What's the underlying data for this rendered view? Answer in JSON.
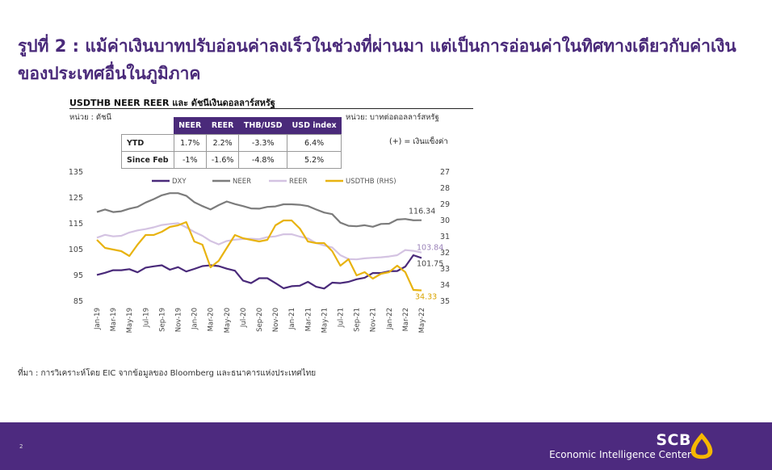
{
  "slide": {
    "title": "รูปที่ 2 : แม้ค่าเงินบาทปรับอ่อนค่าลงเร็วในช่วงที่ผ่านมา แต่เป็นการอ่อนค่าในทิศทางเดียวกับค่าเงินของประเทศอื่นในภูมิภาค",
    "source": "ที่มา : การวิเคราะห์โดย EIC จากข้อมูลของ Bloomberg และธนาคารแห่งประเทศไทย",
    "page_number": "2"
  },
  "footer": {
    "brand_name": "SCB",
    "brand_sub": "Economic Intelligence Center",
    "logo_icon": "scb-lotus-icon",
    "background": "#4d2a7f",
    "logo_color": "#f6b800"
  },
  "chart_head": "USDTHB NEER REER และ ดัชนีเงินดอลลาร์สหรัฐ",
  "unit_left": "หน่วย : ดัชนี",
  "unit_right": "หน่วย: บาทต่อดอลลาร์สหรัฐ",
  "strong_note": "(+) = เงินแข็งค่า",
  "stats_table": {
    "columns": [
      "NEER",
      "REER",
      "THB/USD",
      "USD index"
    ],
    "rows": [
      {
        "label": "YTD",
        "values": [
          "1.7%",
          "2.2%",
          "-3.3%",
          "6.4%"
        ]
      },
      {
        "label": "Since Feb",
        "values": [
          "-1%",
          "-1.6%",
          "-4.8%",
          "5.2%"
        ]
      }
    ]
  },
  "chart_data": {
    "type": "line",
    "x": [
      "Jan-19",
      "Feb-19",
      "Mar-19",
      "Apr-19",
      "May-19",
      "Jun-19",
      "Jul-19",
      "Aug-19",
      "Sep-19",
      "Oct-19",
      "Nov-19",
      "Dec-19",
      "Jan-20",
      "Feb-20",
      "Mar-20",
      "Apr-20",
      "May-20",
      "Jun-20",
      "Jul-20",
      "Aug-20",
      "Sep-20",
      "Oct-20",
      "Nov-20",
      "Dec-20",
      "Jan-21",
      "Feb-21",
      "Mar-21",
      "Apr-21",
      "May-21",
      "Jun-21",
      "Jul-21",
      "Aug-21",
      "Sep-21",
      "Oct-21",
      "Nov-21",
      "Dec-21",
      "Jan-22",
      "Feb-22",
      "Mar-22",
      "Apr-22",
      "May-22"
    ],
    "x_tick_labels": [
      "Jan-19",
      "Mar-19",
      "May-19",
      "Jul-19",
      "Sep-19",
      "Nov-19",
      "Jan-20",
      "Mar-20",
      "May-20",
      "Jul-20",
      "Sep-20",
      "Nov-20",
      "Jan-21",
      "Mar-21",
      "May-21",
      "Jul-21",
      "Sep-21",
      "Nov-21",
      "Jan-22",
      "Mar-22",
      "May-22"
    ],
    "y_left": {
      "ticks": [
        85,
        95,
        105,
        115,
        125,
        135
      ],
      "range": [
        85,
        135
      ]
    },
    "y_right": {
      "ticks": [
        27,
        28,
        29,
        30,
        31,
        32,
        33,
        34,
        35
      ],
      "range": [
        27,
        35
      ],
      "inverted": true
    },
    "series": [
      {
        "name": "DXY",
        "axis": "left",
        "color": "#4a2a7a",
        "values": [
          95.2,
          96,
          97,
          97,
          97.4,
          96.2,
          98,
          98.5,
          98.9,
          97.2,
          98.2,
          96.5,
          97.5,
          98.6,
          98.9,
          98.6,
          97.6,
          96.8,
          93,
          92,
          93.9,
          93.9,
          92,
          90,
          90.8,
          91,
          92.5,
          90.6,
          89.9,
          92.2,
          92,
          92.5,
          93.5,
          94.1,
          95.9,
          95.9,
          96.6,
          96.7,
          98.4,
          102.8,
          101.75
        ]
      },
      {
        "name": "NEER",
        "axis": "left",
        "color": "#7c7c7c",
        "values": [
          119.5,
          120.5,
          119.5,
          119.8,
          120.8,
          121.5,
          123.2,
          124.5,
          126,
          126.8,
          126.8,
          125.8,
          123.3,
          121.8,
          120.5,
          122.2,
          123.6,
          122.6,
          121.8,
          120.9,
          120.8,
          121.5,
          121.7,
          122.5,
          122.5,
          122.3,
          121.8,
          120.5,
          119.3,
          118.7,
          115.4,
          114.2,
          114,
          114.4,
          113.8,
          114.9,
          115,
          116.6,
          116.8,
          116.3,
          116.34
        ]
      },
      {
        "name": "REER",
        "axis": "left",
        "color": "#d4c3e2",
        "values": [
          109.6,
          110.7,
          110.1,
          110.3,
          111.6,
          112.4,
          112.9,
          113.6,
          114.5,
          114.9,
          115.2,
          113.6,
          111.8,
          110.3,
          108.3,
          107,
          108.3,
          108.8,
          109.1,
          109.2,
          109,
          109.8,
          110.1,
          110.9,
          110.9,
          110,
          109.3,
          107.5,
          106.6,
          105.8,
          102.8,
          101.3,
          101.2,
          101.6,
          101.8,
          102,
          102.3,
          102.8,
          104.8,
          104.5,
          103.84
        ]
      },
      {
        "name": "USDTHB (RHS)",
        "axis": "right",
        "color": "#e8b310",
        "values": [
          31.2,
          31.7,
          31.8,
          31.9,
          32.2,
          31.5,
          30.9,
          30.9,
          30.7,
          30.4,
          30.3,
          30.1,
          31.3,
          31.5,
          32.9,
          32.5,
          31.7,
          30.9,
          31.1,
          31.2,
          31.3,
          31.2,
          30.3,
          30.0,
          30.0,
          30.5,
          31.3,
          31.4,
          31.4,
          31.9,
          32.8,
          32.4,
          33.4,
          33.2,
          33.6,
          33.3,
          33.2,
          32.8,
          33.2,
          34.3,
          34.33
        ]
      }
    ],
    "end_labels": [
      {
        "series": "NEER",
        "text": "116.34"
      },
      {
        "series": "REER",
        "text": "103.84"
      },
      {
        "series": "DXY",
        "text": "101.75"
      },
      {
        "series": "USDTHB (RHS)",
        "text": "34.33"
      }
    ],
    "legend_position": "top",
    "grid": false
  }
}
